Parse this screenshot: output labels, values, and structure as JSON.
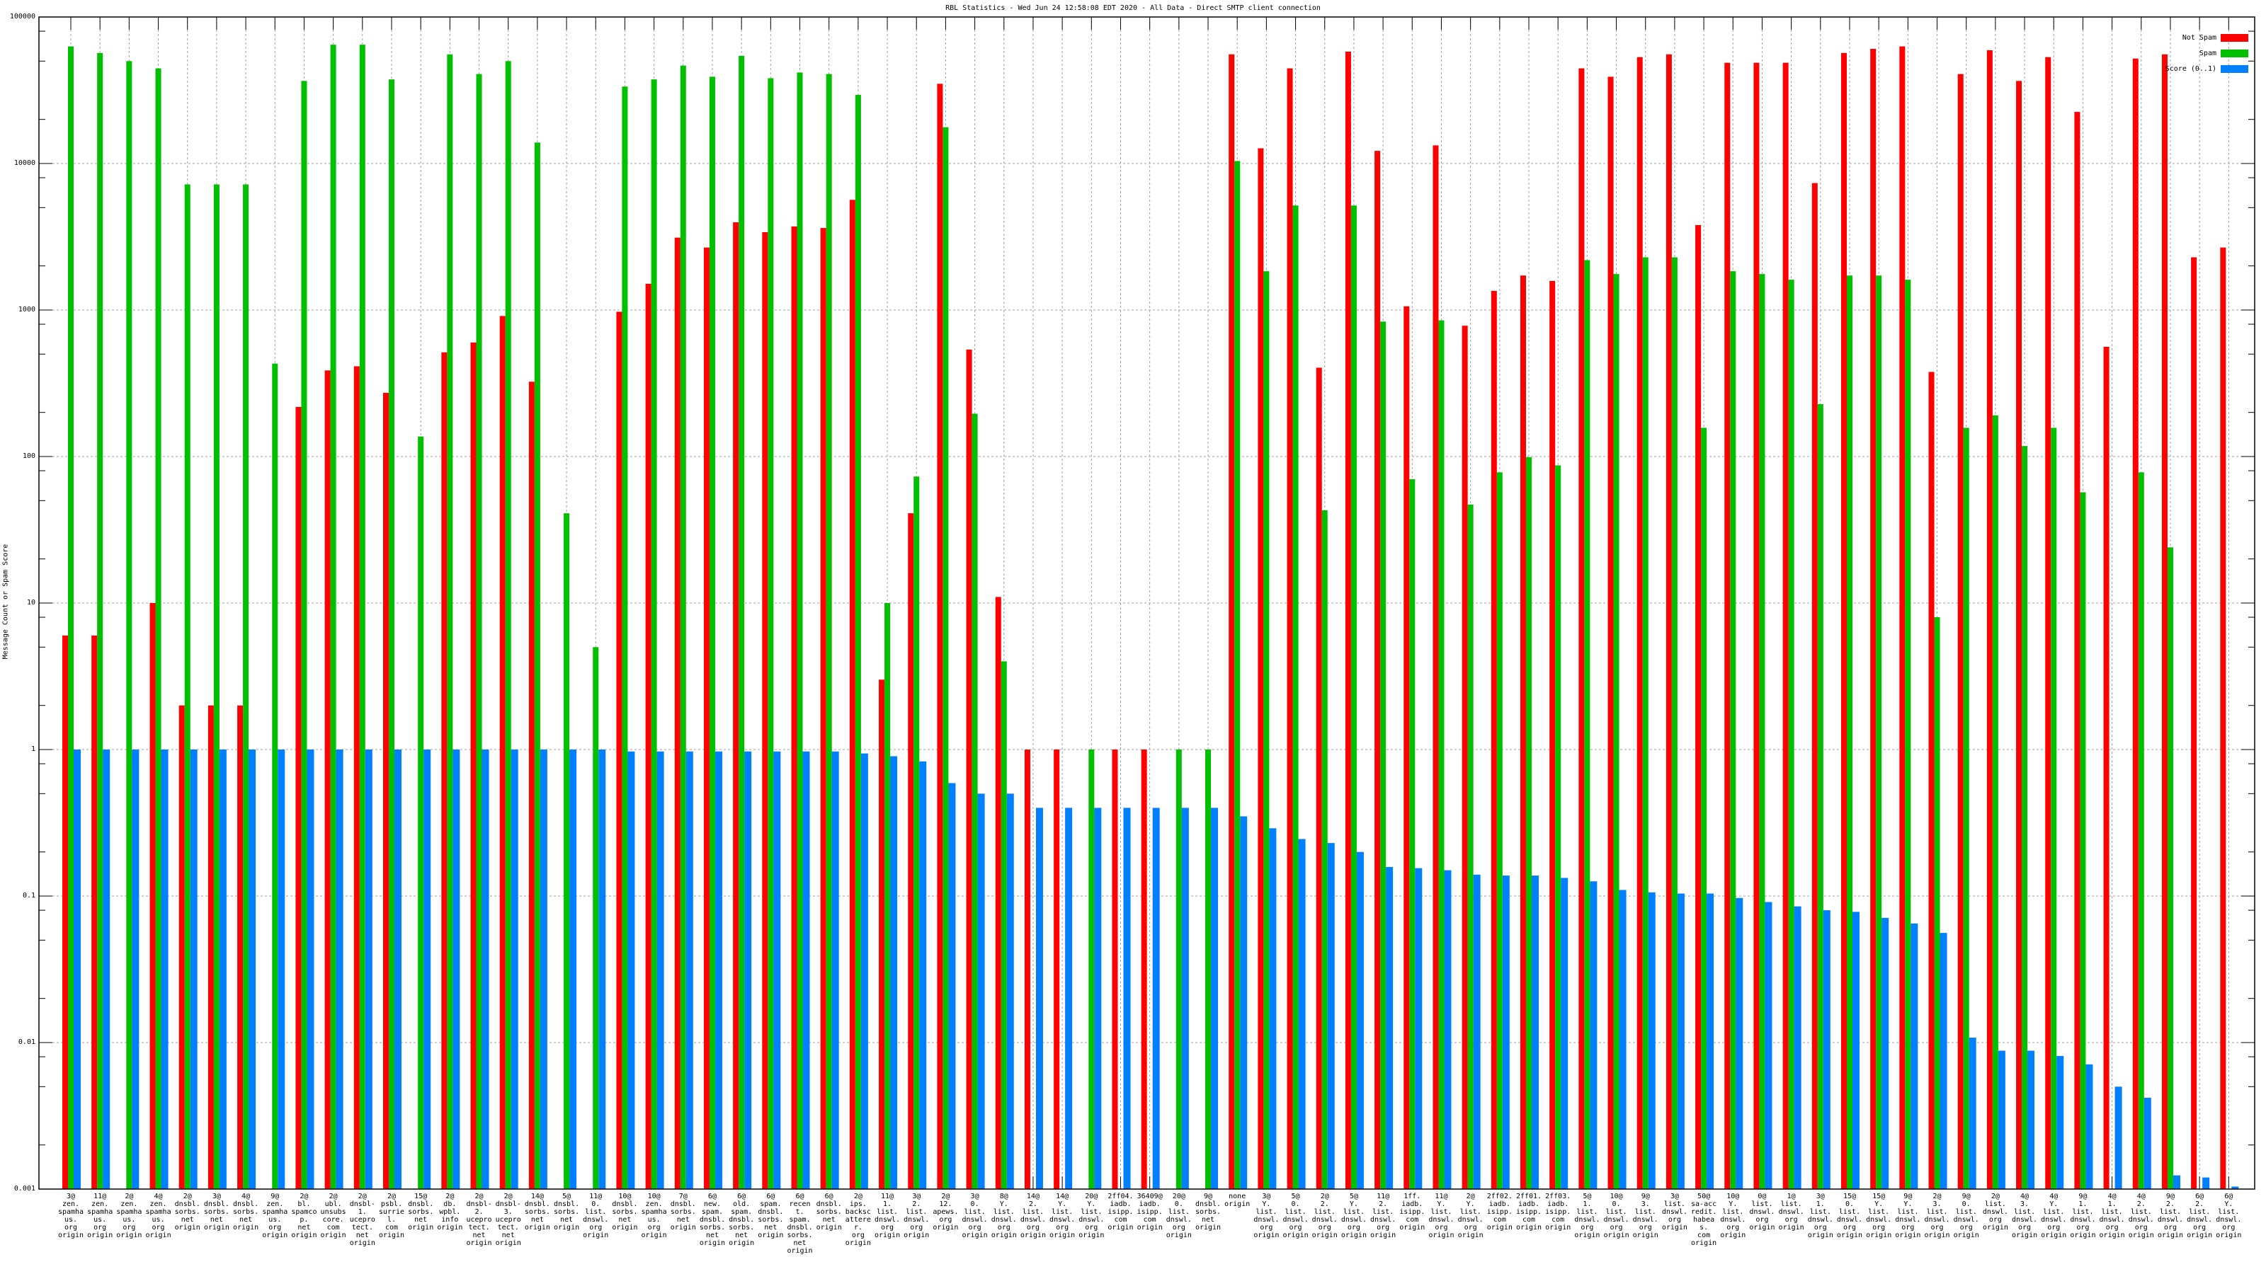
{
  "chart_data": {
    "type": "bar",
    "title": "RBL Statistics - Wed Jun 24 12:58:08 EDT 2020 - All Data - Direct SMTP client connection",
    "xlabel": "",
    "ylabel": "Message Count or Spam Score",
    "yscale": "log",
    "ylim": [
      0.001,
      100000
    ],
    "yticks": [
      "100000",
      "10000",
      "1000",
      "100",
      "10",
      "1",
      "0.1",
      "0.01",
      "0.001"
    ],
    "ytick_values": [
      100000,
      10000,
      1000,
      100,
      10,
      1,
      0.1,
      0.01,
      0.001
    ],
    "grid": true,
    "legend_position": "top-right",
    "categories": [
      "3@\nzen.\nspamhaus.\norg\norigin",
      "11@\nzen.\nspamhaus.\norg\norigin",
      "2@\nzen.\nspamhaus.\norg\norigin",
      "4@\nzen.\nspamhaus.\norg\norigin",
      "2@\ndnsbl.\nsorbs.\nnet\norigin",
      "3@\ndnsbl.\nsorbs.\nnet\norigin",
      "4@\ndnsbl.\nsorbs.\nnet\norigin",
      "9@\nzen.\nspamhaus.\norg\norigin",
      "2@\nbl.\nspamcop.\nnet\norigin",
      "2@\nubl.\nunsubscore.\ncom\norigin",
      "2@\ndnsbl-1.\nuceprotect.\nnet\norigin",
      "2@\npsbl.\nsurriel.\ncom\norigin",
      "15@\ndnsbl.\nsorbs.\nnet\norigin",
      "2@\ndb.\nwpbl.\ninfo\norigin",
      "2@\ndnsbl-2.\nuceprotect.\nnet\norigin",
      "2@\ndnsbl-3.\nuceprotect.\nnet\norigin",
      "14@\ndnsbl.\nsorbs.\nnet\norigin",
      "5@\ndnsbl.\nsorbs.\nnet\norigin",
      "11@\n0.\nlist.\ndnswl.\norg\norigin",
      "10@\ndnsbl.\nsorbs.\nnet\norigin",
      "10@\nzen.\nspamhaus.\norg\norigin",
      "7@\ndnsbl.\nsorbs.\nnet\norigin",
      "6@\nnew.\nspam.\ndnsbl.\nsorbs.\nnet\norigin",
      "6@\nold.\nspam.\ndnsbl.\nsorbs.\nnet\norigin",
      "6@\nspam.\ndnsbl.\nsorbs.\nnet\norigin",
      "6@\nrecent.\nspam.\ndnsbl.\nsorbs.\nnet\norigin",
      "6@\ndnsbl.\nsorbs.\nnet\norigin",
      "2@\nips.\nbackscatterer.\norg\norigin",
      "11@\n1.\nlist.\ndnswl.\norg\norigin",
      "3@\n2.\nlist.\ndnswl.\norg\norigin",
      "2@\n12.\napews.\norg\norigin",
      "3@\n0.\nlist.\ndnswl.\norg\norigin",
      "8@\nY.\nlist.\ndnswl.\norg\norigin",
      "14@\n2.\nlist.\ndnswl.\norg\norigin",
      "14@\nY.\nlist.\ndnswl.\norg\norigin",
      "20@\nY.\nlist.\ndnswl.\norg\norigin",
      "2ff04.\niadb.\nisipp.\ncom\norigin",
      "36409@\niadb.\nisipp.\ncom\norigin",
      "20@\n0.\nlist.\ndnswl.\norg\norigin",
      "9@\ndnsbl.\nsorbs.\nnet\norigin",
      "none\norigin",
      "3@\nY.\nlist.\ndnswl.\norg\norigin",
      "5@\n0.\nlist.\ndnswl.\norg\norigin",
      "2@\n2.\nlist.\ndnswl.\norg\norigin",
      "5@\nY.\nlist.\ndnswl.\norg\norigin",
      "11@\n2.\nlist.\ndnswl.\norg\norigin",
      "1ff.\niadb.\nisipp.\ncom\norigin",
      "11@\nY.\nlist.\ndnswl.\norg\norigin",
      "2@\nY.\nlist.\ndnswl.\norg\norigin",
      "2ff02.\niadb.\nisipp.\ncom\norigin",
      "2ff01.\niadb.\nisipp.\ncom\norigin",
      "2ff03.\niadb.\nisipp.\ncom\norigin",
      "5@\n1.\nlist.\ndnswl.\norg\norigin",
      "10@\n0.\nlist.\ndnswl.\norg\norigin",
      "9@\n3.\nlist.\ndnswl.\norg\norigin",
      "3@\nlist.\ndnswl.\norg\norigin",
      "50@\nsa-accredit.\nhabeas.\ncom\norigin",
      "10@\nY.\nlist.\ndnswl.\norg\norigin",
      "0@\nlist.\ndnswl.\norg\norigin",
      "1@\nlist.\ndnswl.\norg\norigin",
      "3@\n1.\nlist.\ndnswl.\norg\norigin",
      "15@\n0.\nlist.\ndnswl.\norg\norigin",
      "15@\nY.\nlist.\ndnswl.\norg\norigin",
      "9@\nY.\nlist.\ndnswl.\norg\norigin",
      "2@\n3.\nlist.\ndnswl.\norg\norigin",
      "9@\n0.\nlist.\ndnswl.\norg\norigin",
      "2@\nlist.\ndnswl.\norg\norigin",
      "4@\n3.\nlist.\ndnswl.\norg\norigin",
      "4@\nY.\nlist.\ndnswl.\norg\norigin",
      "9@\n1.\nlist.\ndnswl.\norg\norigin",
      "4@\n1.\nlist.\ndnswl.\norg\norigin",
      "4@\n2.\nlist.\ndnswl.\norg\norigin",
      "9@\n2.\nlist.\ndnswl.\norg\norigin",
      "6@\n2.\nlist.\ndnswl.\norg\norigin",
      "6@\nY.\nlist.\ndnswl.\norg\norigin"
    ],
    "series": [
      {
        "name": "Not Spam",
        "color": "#ff0000",
        "values": [
          6,
          6,
          null,
          10,
          2,
          2,
          2,
          null,
          218,
          387,
          413,
          272,
          null,
          514,
          600,
          910,
          324,
          null,
          null,
          973,
          1510,
          3120,
          2670,
          3970,
          3400,
          3720,
          3630,
          5650,
          3,
          41,
          35000,
          537,
          11,
          1,
          1,
          null,
          1,
          1,
          null,
          null,
          55600,
          12700,
          44600,
          404,
          58000,
          12200,
          1060,
          13300,
          781,
          1350,
          1720,
          1580,
          44600,
          39100,
          53200,
          55600,
          3800,
          48700,
          48700,
          48700,
          7350,
          56800,
          60600,
          63000,
          378,
          40800,
          59300,
          36600,
          53200,
          22500,
          561,
          52000,
          55600,
          2290,
          2670
        ]
      },
      {
        "name": "Spam",
        "color": "#00c000",
        "values": [
          63000,
          56800,
          50000,
          44600,
          7200,
          7200,
          7200,
          431,
          36600,
          64700,
          64700,
          37500,
          137,
          55600,
          40800,
          50000,
          13900,
          41,
          5,
          33500,
          37500,
          46600,
          39100,
          54300,
          38200,
          41800,
          40800,
          29400,
          10,
          73,
          17700,
          196,
          4,
          null,
          null,
          1,
          null,
          null,
          1,
          1,
          10400,
          1840,
          5170,
          43,
          5170,
          834,
          70,
          850,
          47,
          78,
          99,
          87,
          2190,
          1760,
          2290,
          2290,
          157,
          1840,
          1760,
          1610,
          228,
          1720,
          1720,
          1610,
          8,
          157,
          191,
          118,
          157,
          57,
          null,
          78,
          24,
          null,
          null
        ]
      },
      {
        "name": "Score (0..1)",
        "color": "#0080ff",
        "values": [
          1,
          1,
          1,
          1,
          1,
          1,
          1,
          1,
          1,
          1,
          1,
          1,
          1,
          1,
          1,
          1,
          1,
          1,
          1,
          0.97,
          0.97,
          0.97,
          0.97,
          0.97,
          0.97,
          0.97,
          0.97,
          0.94,
          0.9,
          0.83,
          0.59,
          0.5,
          0.5,
          0.4,
          0.4,
          0.4,
          0.4,
          0.4,
          0.4,
          0.4,
          0.35,
          0.29,
          0.245,
          0.23,
          0.2,
          0.158,
          0.155,
          0.15,
          0.14,
          0.138,
          0.138,
          0.133,
          0.126,
          0.11,
          0.106,
          0.104,
          0.104,
          0.097,
          0.091,
          0.085,
          0.08,
          0.078,
          0.071,
          0.065,
          0.056,
          0.0108,
          0.0088,
          0.0088,
          0.0081,
          0.0071,
          0.005,
          0.0042,
          0.00124,
          0.0012,
          0.00104
        ]
      }
    ]
  }
}
